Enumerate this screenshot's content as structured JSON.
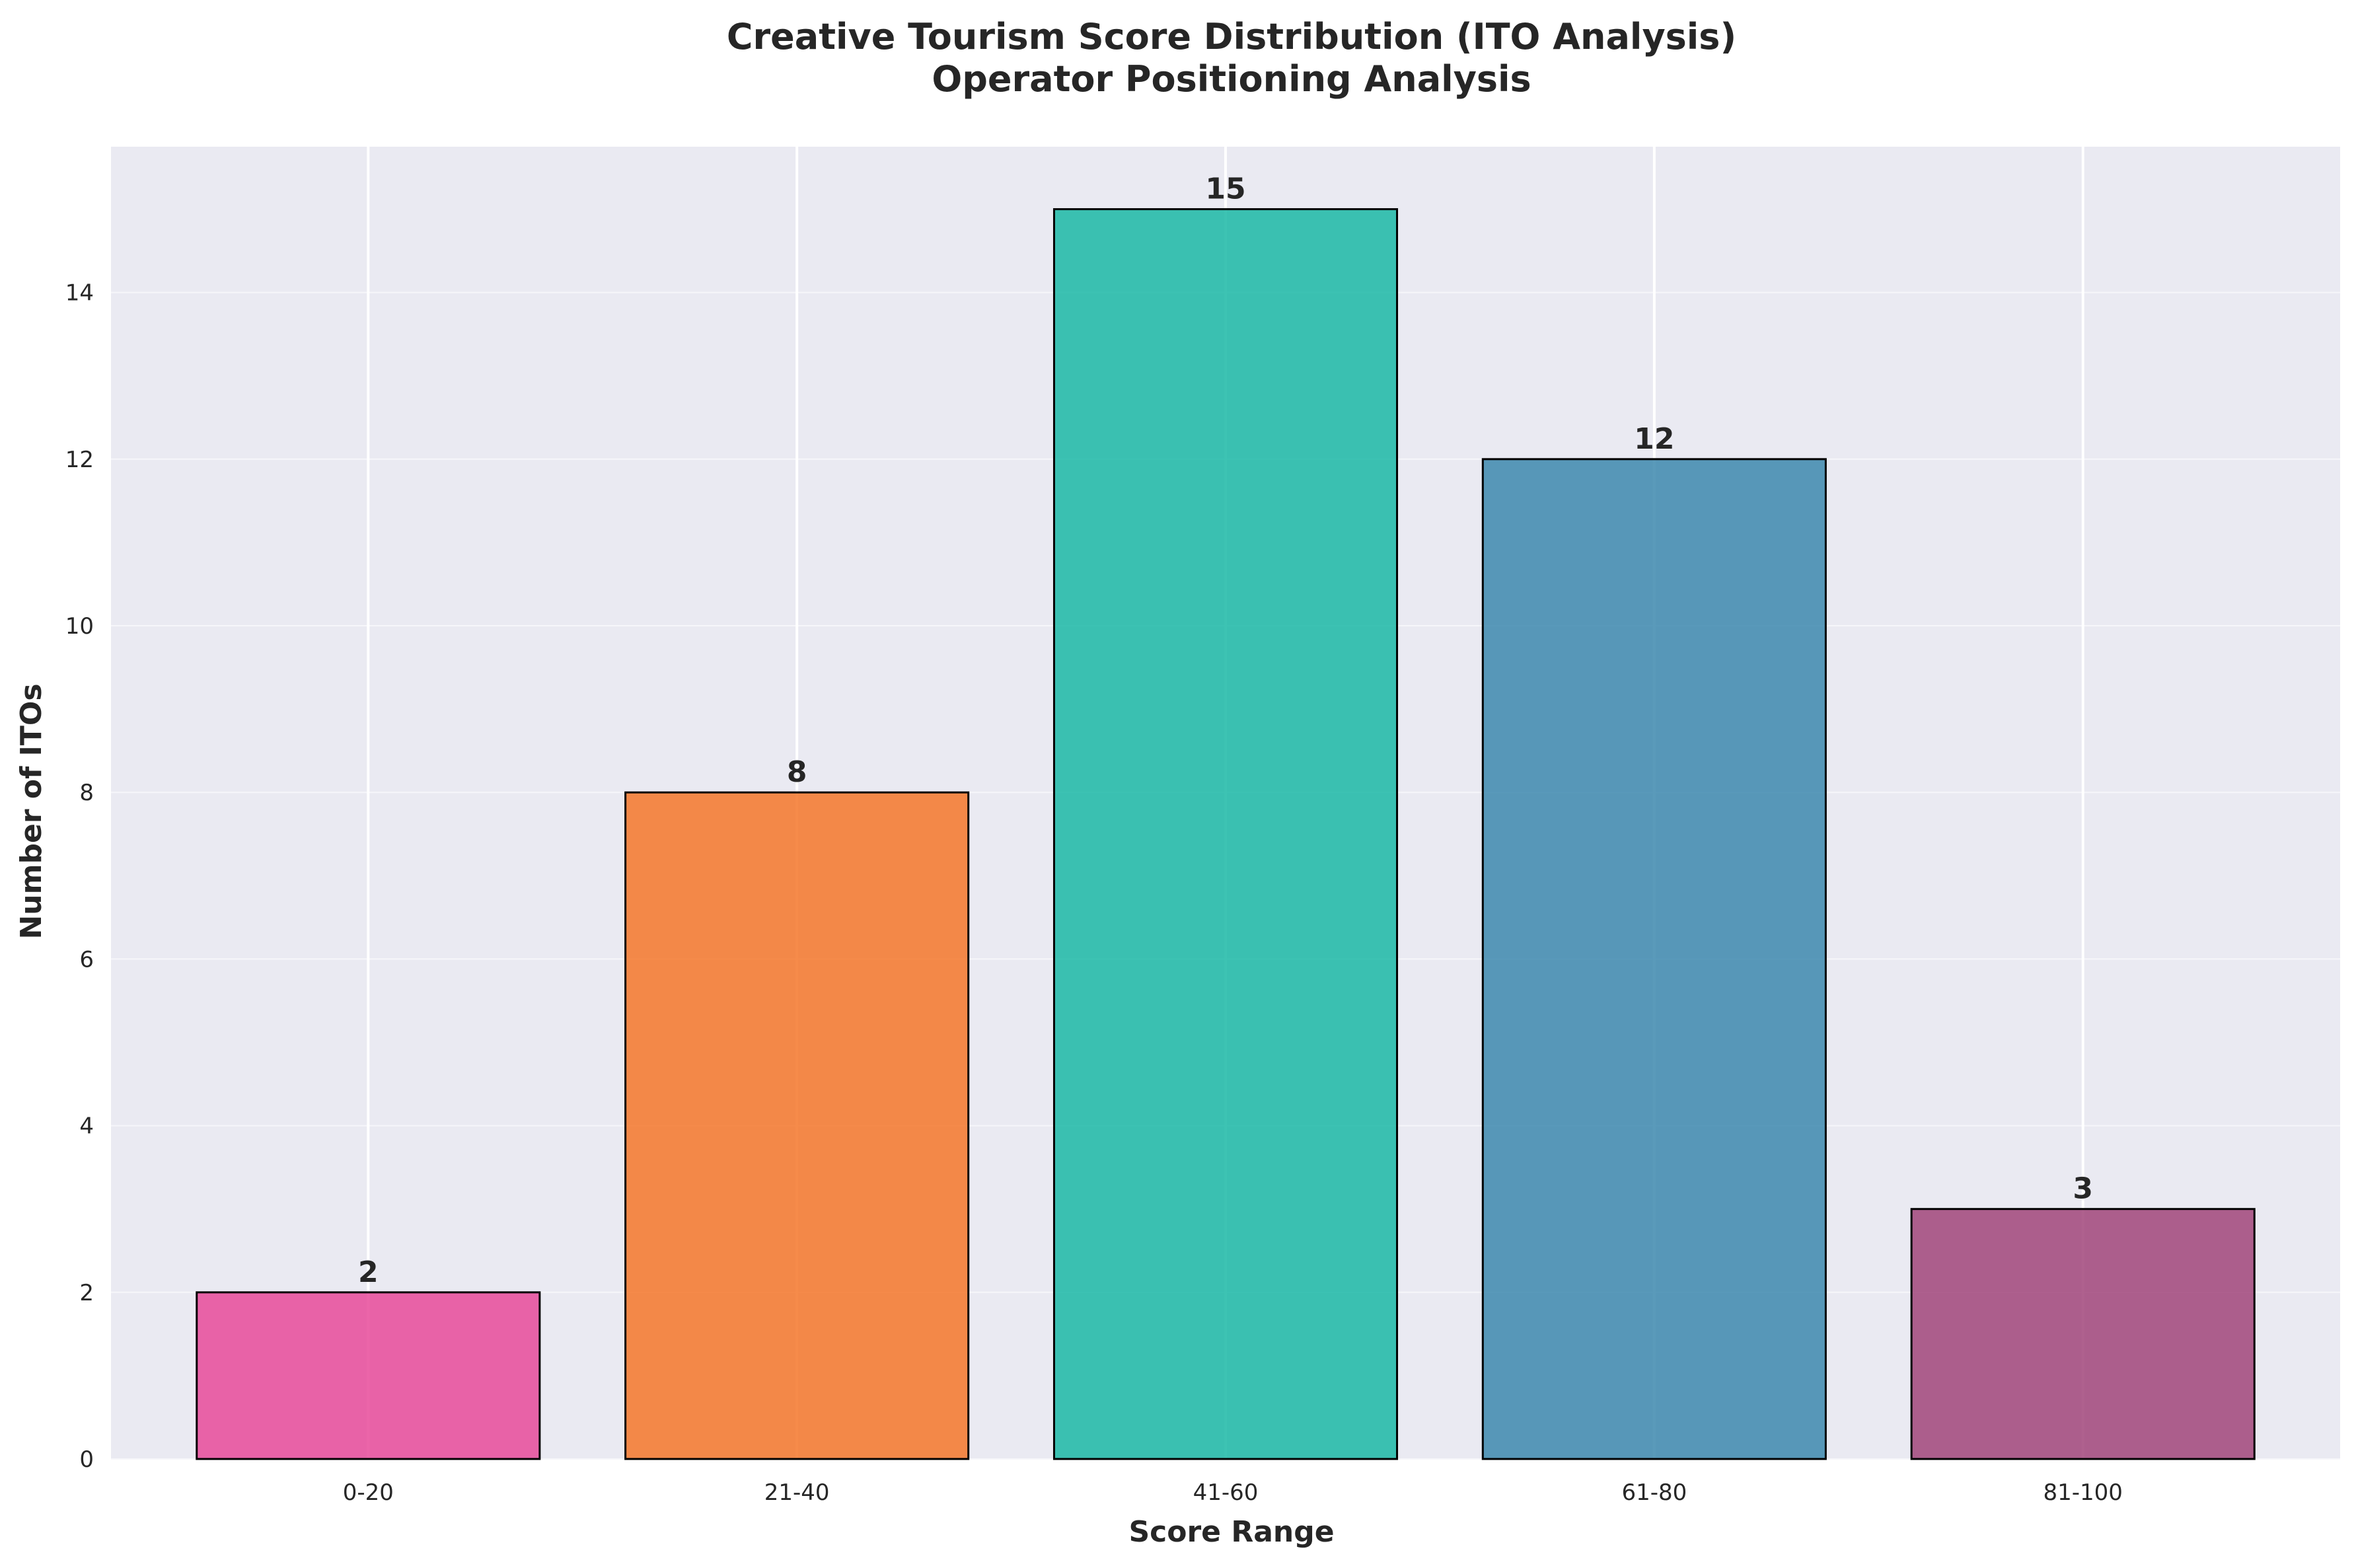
{
  "chart_data": {
    "type": "bar",
    "title": "Creative Tourism Score Distribution (ITO Analysis)",
    "subtitle": "Operator Positioning Analysis",
    "xlabel": "Score Range",
    "ylabel": "Number of ITOs",
    "categories": [
      "0-20",
      "21-40",
      "41-60",
      "61-80",
      "81-100"
    ],
    "values": [
      2,
      8,
      15,
      12,
      3
    ],
    "data_labels": [
      "2",
      "8",
      "15",
      "12",
      "3"
    ],
    "ylim": [
      0,
      15.75
    ],
    "yticks": [
      0,
      2,
      4,
      6,
      8,
      10,
      12,
      14
    ],
    "ytick_labels": [
      "0",
      "2",
      "4",
      "6",
      "8",
      "10",
      "12",
      "14"
    ],
    "grid": true,
    "colors": [
      "#e84a9a",
      "#f5772a",
      "#1bb8a6",
      "#3d88ae",
      "#a1457a"
    ],
    "bar_edge_color": "#000000",
    "background_color": "#eaeaf2"
  }
}
